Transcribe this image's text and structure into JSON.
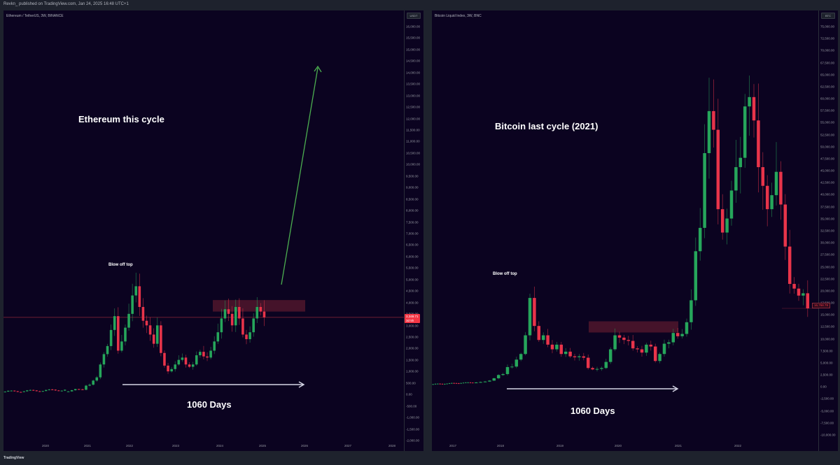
{
  "header": {
    "published_by": "Revkn_ published on TradingView.com, Jan 24, 2025 16:48 UTC+1"
  },
  "footer": {
    "logo": "TradingView"
  },
  "left_chart": {
    "symbol": "Ethereum / TetherUS, 3W, BINANCE",
    "currency": "USDT",
    "annotation_title": "Ethereum this cycle",
    "annotation_top": "Blow off top",
    "annotation_days": "1060 Days",
    "price_label": "3,349.71",
    "price_label_sub": "3d 5h",
    "y_ticks": [
      "16,000.00",
      "15,500.00",
      "15,000.00",
      "14,500.00",
      "14,000.00",
      "13,500.00",
      "13,000.00",
      "12,500.00",
      "12,000.00",
      "11,500.00",
      "11,000.00",
      "10,500.00",
      "10,000.00",
      "9,500.00",
      "9,000.00",
      "8,500.00",
      "8,000.00",
      "7,500.00",
      "7,000.00",
      "6,500.00",
      "6,000.00",
      "5,500.00",
      "5,000.00",
      "4,500.00",
      "4,000.00",
      "3,500.00",
      "3,000.00",
      "2,500.00",
      "2,000.00",
      "1,500.00",
      "1,000.00",
      "500.00",
      "0.00",
      "-500.00",
      "-1,000.00",
      "-1,500.00",
      "-2,000.00"
    ],
    "x_ticks": [
      "2020",
      "2021",
      "2022",
      "2023",
      "2024",
      "2025",
      "2026",
      "2027",
      "2028"
    ]
  },
  "right_chart": {
    "symbol": "Bitcoin Liquid Index, 3W, BNC",
    "currency": "BTC",
    "annotation_title": "Bitcoin last cycle (2021)",
    "annotation_top": "Blow off top",
    "annotation_days": "1060 Days",
    "price_label": "16,768.78",
    "y_ticks": [
      "75,000.00",
      "72,500.00",
      "70,000.00",
      "67,500.00",
      "65,000.00",
      "62,500.00",
      "60,000.00",
      "57,500.00",
      "55,000.00",
      "52,500.00",
      "50,000.00",
      "47,500.00",
      "45,000.00",
      "42,500.00",
      "40,000.00",
      "37,500.00",
      "35,000.00",
      "32,500.00",
      "30,000.00",
      "27,500.00",
      "25,000.00",
      "22,500.00",
      "20,000.00",
      "17,500.00",
      "15,000.00",
      "12,500.00",
      "10,000.00",
      "7,500.00",
      "5,000.00",
      "2,500.00",
      "0.00",
      "-2,500.00",
      "-5,000.00",
      "-7,500.00",
      "-10,000.00"
    ],
    "x_ticks": [
      "2017",
      "2018",
      "2019",
      "2020",
      "2021",
      "2022"
    ]
  },
  "colors": {
    "background": "#0b0320",
    "frame": "#1e222d",
    "up_candle": "#26a65b",
    "down_candle": "#e8344a",
    "resistance_box": "#5a1a2e",
    "arrow_white": "#d6d6e6",
    "arrow_green": "#4caf50"
  },
  "chart_data": [
    {
      "type": "candlestick",
      "title": "Ethereum this cycle",
      "symbol": "ETH/USDT 3W",
      "ylabel": "USDT",
      "ylim": [
        -2000,
        16000
      ],
      "x_ticks": [
        "2020",
        "2021",
        "2022",
        "2023",
        "2024",
        "2025",
        "2026",
        "2027",
        "2028"
      ],
      "approx_closes": [
        130,
        180,
        230,
        220,
        200,
        380,
        420,
        600,
        740,
        1300,
        1750,
        2100,
        2800,
        3400,
        1900,
        2300,
        2900,
        3500,
        4300,
        4700,
        3800,
        3200,
        3000,
        2600,
        2200,
        3000,
        1800,
        1250,
        1000,
        1100,
        1300,
        1500,
        1600,
        1300,
        1200,
        1300,
        1700,
        1850,
        1650,
        1600,
        1900,
        2300,
        2700,
        3300,
        3700,
        3500,
        3000,
        3800,
        3300,
        2600,
        2400,
        2700,
        3300,
        3800,
        3600,
        3349
      ],
      "annotations": [
        "Blow off top (~4,800, Nov 2021)",
        "Resistance box ~3,550–4,100 (2024)",
        "1060 Days arrow (Nov 2021 → late 2024)",
        "Projected green arrow to ~14,500"
      ],
      "last_price": 3349.71
    },
    {
      "type": "candlestick",
      "title": "Bitcoin last cycle (2021)",
      "symbol": "BLX 3W",
      "ylabel": "BTC",
      "ylim": [
        -10000,
        75000
      ],
      "x_ticks": [
        "2017",
        "2018",
        "2019",
        "2020",
        "2021",
        "2022"
      ],
      "approx_closes": [
        900,
        1000,
        1100,
        1300,
        1800,
        2500,
        2700,
        4200,
        4300,
        5800,
        7000,
        11000,
        19000,
        13000,
        10000,
        11000,
        9000,
        8000,
        9000,
        7000,
        7500,
        6500,
        6300,
        6500,
        6200,
        4000,
        3700,
        3800,
        4000,
        5300,
        8000,
        11000,
        10500,
        10000,
        9800,
        8200,
        8000,
        7300,
        9000,
        8600,
        5500,
        7000,
        9200,
        9500,
        11500,
        10800,
        11300,
        13800,
        18500,
        29000,
        34000,
        50000,
        59000,
        55000,
        38000,
        33000,
        36000,
        42000,
        47000,
        49000,
        60000,
        62000,
        57000,
        47000,
        43000,
        38000,
        41000,
        46000,
        39000,
        30000,
        22000,
        21000,
        19500,
        20000,
        16768
      ],
      "annotations": [
        "Blow off top (~19,500, Dec 2017)",
        "Resistance box ~13,800 (2019–2020)",
        "1060 Days arrow (Dec 2017 → Nov 2020)"
      ],
      "last_price": 16768.78
    }
  ]
}
